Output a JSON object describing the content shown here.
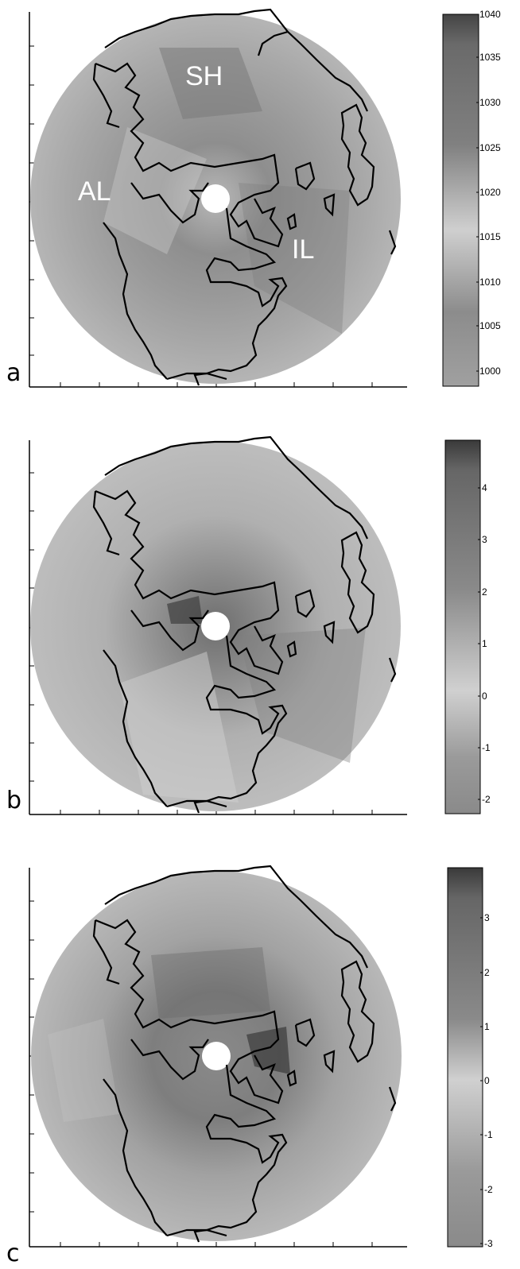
{
  "panels": [
    {
      "label": "a",
      "region_labels": [
        "SH",
        "AL",
        "IL"
      ],
      "colorbar": {
        "ticks": [
          "1040",
          "1035",
          "1030",
          "1025",
          "1020",
          "1015",
          "1010",
          "1005",
          "1000"
        ]
      }
    },
    {
      "label": "b",
      "region_labels": [],
      "colorbar": {
        "ticks": [
          "4",
          "3",
          "2",
          "1",
          "0",
          "-1",
          "-2"
        ]
      }
    },
    {
      "label": "c",
      "region_labels": [],
      "colorbar": {
        "ticks": [
          "3",
          "2",
          "1",
          "0",
          "-1",
          "-2",
          "-3"
        ]
      }
    }
  ],
  "colors": {
    "background": "#ffffff",
    "coastline": "#000000"
  }
}
